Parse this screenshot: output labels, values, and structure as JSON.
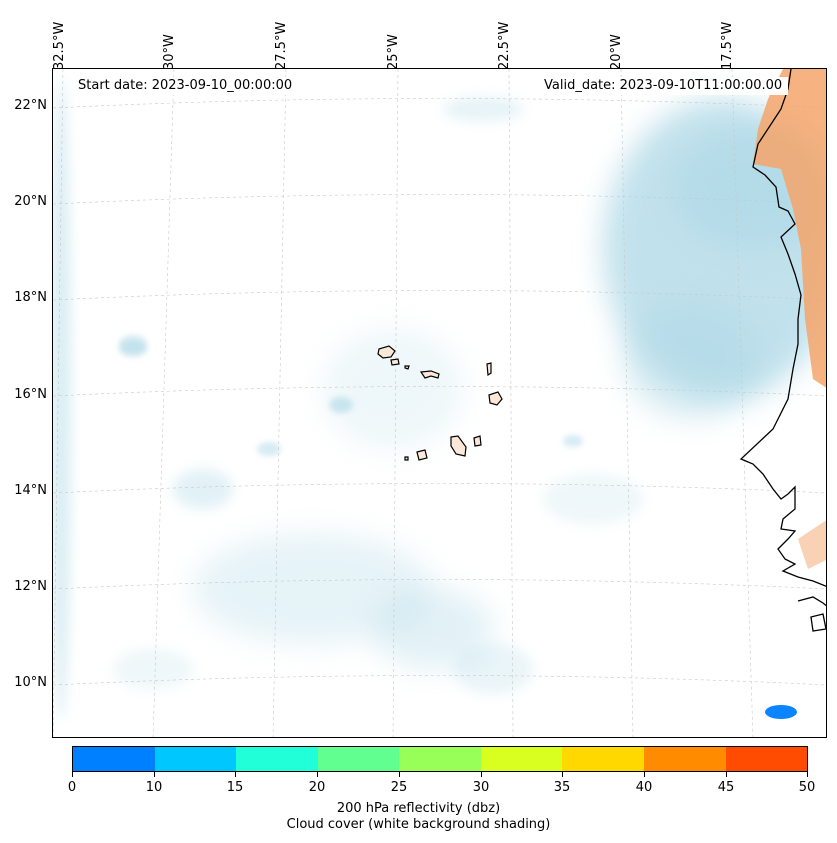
{
  "header": {
    "start_date": "Start date: 2023-09-10_00:00:00",
    "valid_date": "Valid_date: 2023-09-10T11:00:00.00"
  },
  "axes": {
    "longitude_labels": [
      "32.5°W",
      "30°W",
      "27.5°W",
      "25°W",
      "22.5°W",
      "20°W",
      "17.5°W"
    ],
    "latitude_labels": [
      "22°N",
      "20°N",
      "18°N",
      "16°N",
      "14°N",
      "12°N",
      "10°N"
    ]
  },
  "colorbar": {
    "ticks": [
      "0",
      "10",
      "15",
      "20",
      "25",
      "30",
      "35",
      "40",
      "45",
      "50"
    ],
    "colors": [
      "#0080ff",
      "#00c8ff",
      "#20ffd8",
      "#60ff90",
      "#98ff58",
      "#d8ff20",
      "#ffd800",
      "#ff8c00",
      "#ff4c00"
    ],
    "label": "200 hPa reflectivity (dbz)",
    "sublabel": "Cloud cover (white background shading)"
  },
  "colors": {
    "cloud": "#add8e6",
    "land_shading": "#f4a46a",
    "echo": "#0a84ff",
    "coast": "#000000",
    "grid": "#c8c8c8"
  }
}
